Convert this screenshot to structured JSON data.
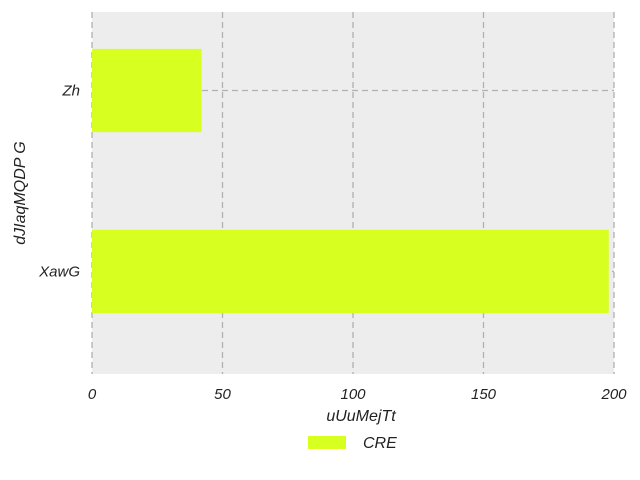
{
  "chart_data": {
    "type": "bar",
    "orientation": "horizontal",
    "categories": [
      "Zh",
      "XawG"
    ],
    "series": [
      {
        "name": "CRE",
        "values": [
          42,
          198
        ],
        "color": "#d7ff1f"
      }
    ],
    "xlabel": "uUuMejTt",
    "ylabel": "dJIaqMQDP  G",
    "xlim": [
      0,
      200
    ],
    "xticks": [
      0,
      50,
      100,
      150,
      200
    ],
    "grid": true,
    "legend_position": "bottom-center",
    "plot_background": "#ededed",
    "grid_color": "#b0b0b0"
  }
}
